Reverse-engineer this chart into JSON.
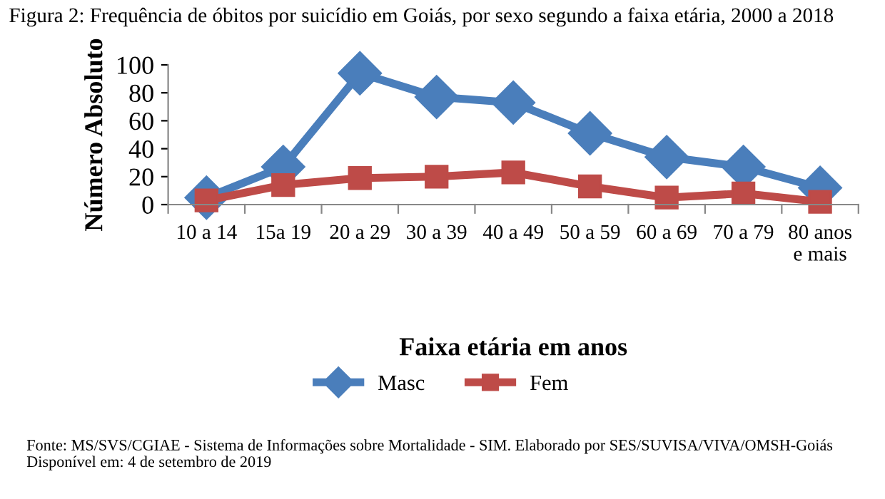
{
  "chart_data": {
    "type": "line",
    "title": "Figura 2: Frequência de óbitos por suicídio em Goiás, por sexo segundo a faixa etária, 2000 a 2018",
    "xlabel": "Faixa etária em anos",
    "ylabel": "Número Absoluto",
    "categories": [
      "10 a 14",
      "15a 19",
      "20 a 29",
      "30 a 39",
      "40 a 49",
      "50 a 59",
      "60 a 69",
      "70 a 79",
      "80 anos\ne mais"
    ],
    "series": [
      {
        "name": "Masc",
        "color": "#4a7ebb",
        "marker": "diamond",
        "values": [
          5,
          27,
          94,
          77,
          73,
          51,
          34,
          27,
          12
        ]
      },
      {
        "name": "Fem",
        "color": "#be4b48",
        "marker": "square",
        "values": [
          3,
          14,
          19,
          20,
          23,
          13,
          5,
          8,
          2
        ]
      }
    ],
    "ylim": [
      0,
      100
    ],
    "yticks": [
      0,
      20,
      40,
      60,
      80,
      100
    ],
    "grid": false,
    "legend": "bottom",
    "line_style": "solid",
    "annotations": [
      "Fonte: MS/SVS/CGIAE - Sistema de Informações sobre Mortalidade - SIM. Elaborado por SES/SUVISA/VIVA/OMSH-Goiás Disponível em: 4 de setembro de 2019"
    ]
  }
}
